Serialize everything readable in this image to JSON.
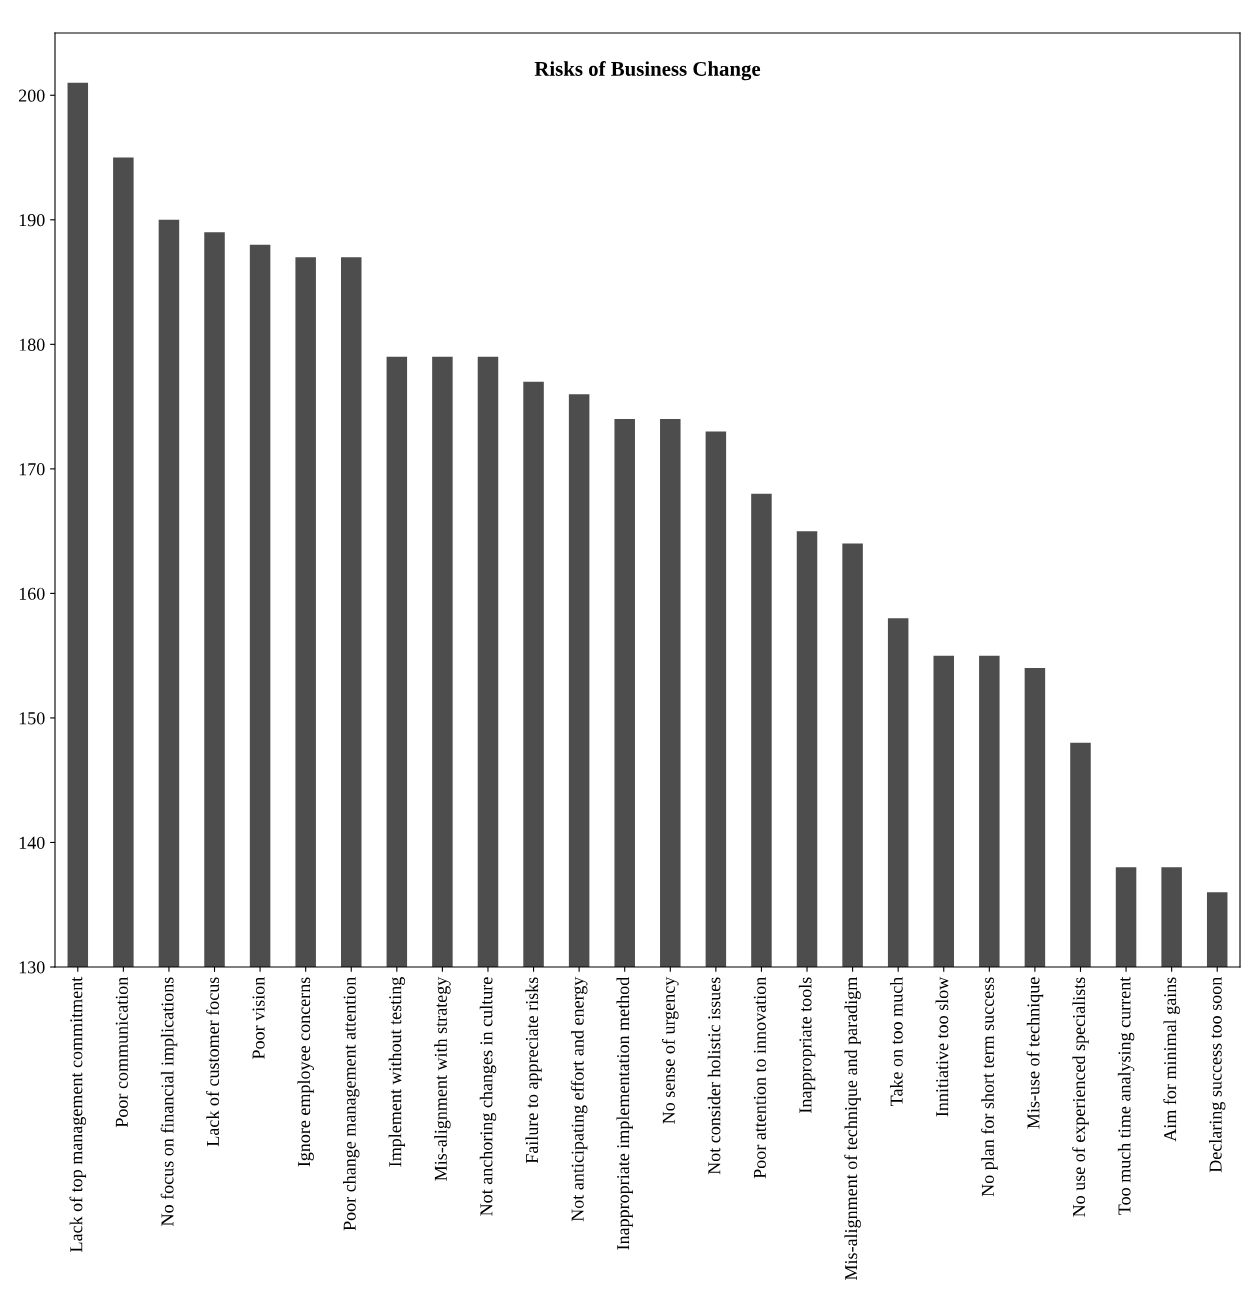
{
  "chart_data": {
    "type": "bar",
    "title": "Risks of Business Change",
    "categories": [
      "Lack of top management commitment",
      "Poor communication",
      "No focus on financial implications",
      "Lack of customer focus",
      "Poor vision",
      "Ignore employee concerns",
      "Poor change management attention",
      "Implement without testing",
      "Mis-alignment with strategy",
      "Not anchoring changes in culture",
      "Failure to appreciate risks",
      "Not anticipating effort and energy",
      "Inappropriate implementation method",
      "No sense of urgency",
      "Not consider holistic issues",
      "Poor attention to innovation",
      "Inappropriate tools",
      "Mis-alignment of technique and paradigm",
      "Take on too much",
      "Innitiative too slow",
      "No plan for short term success",
      "Mis-use of technique",
      "No use of experienced specialists",
      "Too much time analysing current",
      "Aim for minimal gains",
      "Declaring success too soon"
    ],
    "values": [
      201,
      195,
      190,
      189,
      188,
      187,
      187,
      179,
      179,
      179,
      177,
      176,
      174,
      174,
      173,
      168,
      165,
      164,
      158,
      155,
      155,
      154,
      148,
      138,
      138,
      136
    ],
    "color": "#4d4d4d",
    "ylim": [
      130,
      205
    ],
    "yticks": [
      130,
      140,
      150,
      160,
      170,
      180,
      190,
      200
    ],
    "grid": false,
    "legend": false
  }
}
